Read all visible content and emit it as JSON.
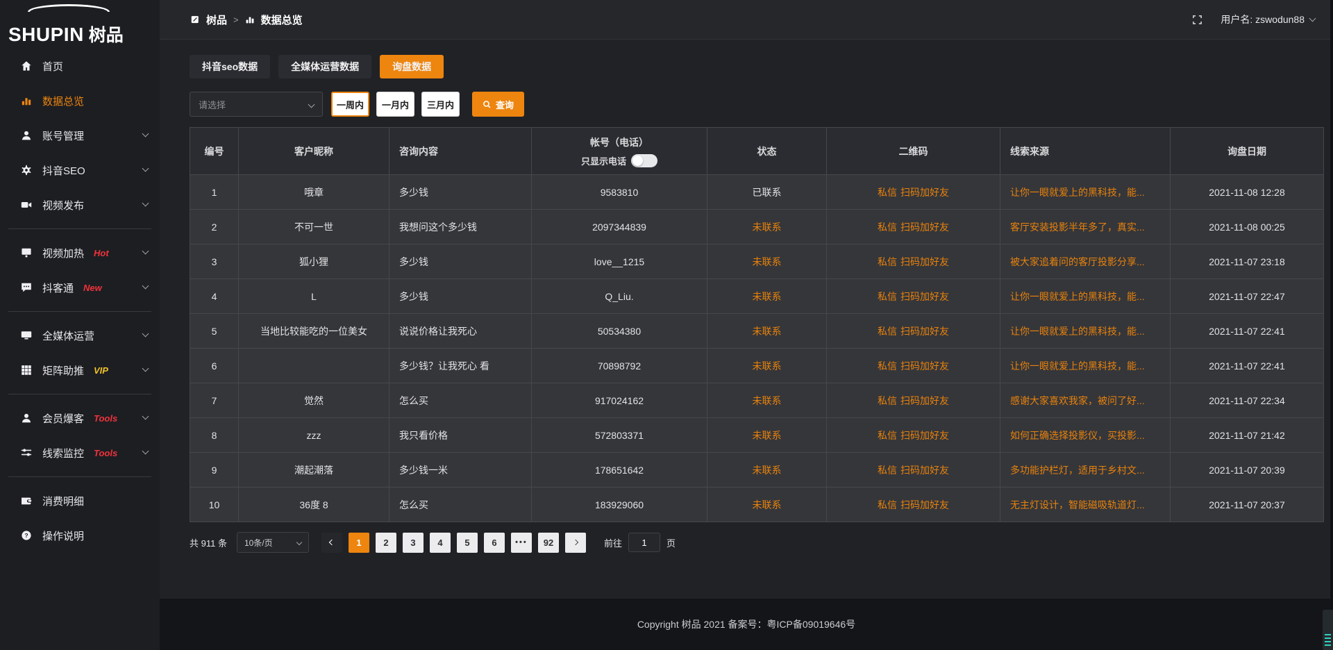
{
  "logo": {
    "en": "SHUPIN",
    "cn": "树品"
  },
  "breadcrumb": {
    "root": "树品",
    "separator": ">",
    "current": "数据总览"
  },
  "topbar": {
    "user": "用户名: zswodun88"
  },
  "sidebar": {
    "items": [
      {
        "key": "home",
        "icon": "home",
        "label": "首页"
      },
      {
        "key": "data-overview",
        "icon": "chart",
        "label": "数据总览",
        "active": true
      },
      {
        "key": "account-management",
        "icon": "user",
        "label": "账号管理",
        "chevron": true
      },
      {
        "key": "douyin-seo",
        "icon": "gear",
        "label": "抖音SEO",
        "chevron": true
      },
      {
        "key": "video-publish",
        "icon": "video",
        "label": "视频发布",
        "chevron": true
      },
      {
        "divider": true
      },
      {
        "key": "video-heating",
        "icon": "screen",
        "label": "视频加热",
        "badge": "Hot",
        "badge_color": "#f0323c",
        "chevron": true
      },
      {
        "key": "douketong",
        "icon": "chat",
        "label": "抖客通",
        "badge": "New",
        "badge_color": "#f0323c",
        "chevron": true
      },
      {
        "divider": true
      },
      {
        "key": "omni-media",
        "icon": "monitor",
        "label": "全媒体运营",
        "chevron": true
      },
      {
        "key": "matrix-boost",
        "icon": "grid",
        "label": "矩阵助推",
        "badge": "VIP",
        "badge_color": "#f0c22a",
        "chevron": true
      },
      {
        "divider": true
      },
      {
        "key": "member-baoke",
        "icon": "user",
        "label": "会员爆客",
        "badge": "Tools",
        "badge_color": "#f0323c",
        "chevron": true
      },
      {
        "key": "lead-monitor",
        "icon": "sliders",
        "label": "线索监控",
        "badge": "Tools",
        "badge_color": "#f0323c",
        "chevron": true
      },
      {
        "divider": true
      },
      {
        "key": "consumption-detail",
        "icon": "wallet",
        "label": "消费明细"
      },
      {
        "key": "operation-guide",
        "icon": "help",
        "label": "操作说明"
      }
    ]
  },
  "tabs": [
    {
      "key": "douyin-seo-data",
      "label": "抖音seo数据"
    },
    {
      "key": "omni-media-data",
      "label": "全媒体运营数据"
    },
    {
      "key": "inquiry-data",
      "label": "询盘数据",
      "active": true
    }
  ],
  "filters": {
    "select_placeholder": "请选择",
    "ranges": [
      {
        "key": "week",
        "label": "一周内",
        "active": true
      },
      {
        "key": "month",
        "label": "一月内"
      },
      {
        "key": "quarter",
        "label": "三月内"
      }
    ],
    "search_label": "查询"
  },
  "table": {
    "headers": [
      "编号",
      "客户昵称",
      "咨询内容",
      "帐号（电话）",
      "状态",
      "二维码",
      "线索来源",
      "询盘日期"
    ],
    "phone_toggle_label": "只显示电话",
    "rows": [
      {
        "id": "1",
        "nickname": "哦章",
        "content": "多少钱",
        "account": "9583810",
        "status": "已联系",
        "contacted": true,
        "qrcode": "私信 扫码加好友",
        "source": "让你一眼就爱上的黑科技，能...",
        "date": "2021-11-08 12:28"
      },
      {
        "id": "2",
        "nickname": "不可一世",
        "content": "我想问这个多少钱",
        "account": "2097344839",
        "status": "未联系",
        "contacted": false,
        "qrcode": "私信 扫码加好友",
        "source": "客厅安装投影半年多了，真实...",
        "date": "2021-11-08 00:25"
      },
      {
        "id": "3",
        "nickname": "狐小狸",
        "content": "多少钱",
        "account": "love__1215",
        "status": "未联系",
        "contacted": false,
        "qrcode": "私信 扫码加好友",
        "source": "被大家追着问的客厅投影分享...",
        "date": "2021-11-07 23:18"
      },
      {
        "id": "4",
        "nickname": "L",
        "content": "多少钱",
        "account": "Q_Liu.",
        "status": "未联系",
        "contacted": false,
        "qrcode": "私信 扫码加好友",
        "source": "让你一眼就爱上的黑科技，能...",
        "date": "2021-11-07 22:47"
      },
      {
        "id": "5",
        "nickname": "当地比较能吃的一位美女",
        "content": "说说价格让我死心",
        "account": "50534380",
        "status": "未联系",
        "contacted": false,
        "qrcode": "私信 扫码加好友",
        "source": "让你一眼就爱上的黑科技，能...",
        "date": "2021-11-07 22:41"
      },
      {
        "id": "6",
        "nickname": "",
        "content": "多少钱？让我死心 看",
        "account": "70898792",
        "status": "未联系",
        "contacted": false,
        "qrcode": "私信 扫码加好友",
        "source": "让你一眼就爱上的黑科技，能...",
        "date": "2021-11-07 22:41"
      },
      {
        "id": "7",
        "nickname": "觉然",
        "content": "怎么买",
        "account": "917024162",
        "status": "未联系",
        "contacted": false,
        "qrcode": "私信 扫码加好友",
        "source": "感谢大家喜欢我家，被问了好...",
        "date": "2021-11-07 22:34"
      },
      {
        "id": "8",
        "nickname": "zzz",
        "content": "我只看价格",
        "account": "572803371",
        "status": "未联系",
        "contacted": false,
        "qrcode": "私信 扫码加好友",
        "source": "如何正确选择投影仪，买投影...",
        "date": "2021-11-07 21:42"
      },
      {
        "id": "9",
        "nickname": "潮起潮落",
        "content": "多少钱一米",
        "account": "178651642",
        "status": "未联系",
        "contacted": false,
        "qrcode": "私信 扫码加好友",
        "source": "多功能护栏灯，适用于乡村文...",
        "date": "2021-11-07 20:39"
      },
      {
        "id": "10",
        "nickname": "36度 8",
        "content": "怎么买",
        "account": "183929060",
        "status": "未联系",
        "contacted": false,
        "qrcode": "私信 扫码加好友",
        "source": "无主灯设计，智能磁吸轨道灯...",
        "date": "2021-11-07 20:37"
      }
    ]
  },
  "pagination": {
    "total_label": "共 911 条",
    "page_size": "10条/页",
    "pages": [
      "1",
      "2",
      "3",
      "4",
      "5",
      "6",
      "•••",
      "92"
    ],
    "active_page": "1",
    "goto_label": "前往",
    "goto_value": "1",
    "page_label": "页"
  },
  "footer": {
    "copyright": "Copyright 树品 2021 备案号：粤ICP备09019646号"
  },
  "colors": {
    "accent": "#ed850f",
    "link_orange": "#e8820c",
    "status_uncontacted": "#e8820c",
    "badge_red": "#f0323c",
    "badge_vip": "#f0c22a"
  }
}
